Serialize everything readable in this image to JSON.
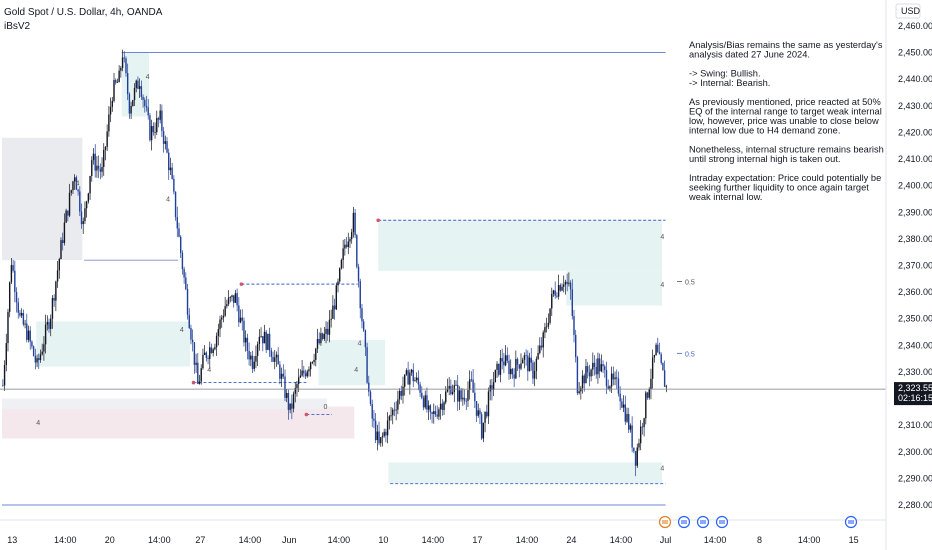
{
  "header": {
    "symbol_title": "Gold Spot / U.S. Dollar, 4h, OANDA",
    "indicator": "iBsV2"
  },
  "chart_data": {
    "type": "candlestick",
    "currency_label": "USD",
    "ylim": [
      2276,
      2465
    ],
    "y_ticks": [
      "2,460.000",
      "2,450.000",
      "2,440.000",
      "2,430.000",
      "2,420.000",
      "2,410.000",
      "2,400.000",
      "2,390.000",
      "2,380.000",
      "2,370.000",
      "2,360.000",
      "2,350.000",
      "2,340.000",
      "2,330.000",
      "2,320.000",
      "2,310.000",
      "2,300.000",
      "2,290.000",
      "2,280.000"
    ],
    "y_tick_values": [
      2460,
      2450,
      2440,
      2430,
      2420,
      2410,
      2400,
      2390,
      2380,
      2370,
      2360,
      2350,
      2340,
      2330,
      2320,
      2310,
      2300,
      2290,
      2280
    ],
    "x_ticks": [
      "13",
      "14:00",
      "20",
      "14:00",
      "27",
      "14:00",
      "Jun",
      "14:00",
      "10",
      "14:00",
      "17",
      "14:00",
      "24",
      "14:00",
      "Jul",
      "14:00",
      "8",
      "14:00",
      "15"
    ],
    "x_tick_bars": [
      6,
      37,
      63,
      92,
      116,
      145,
      168,
      197,
      223,
      252,
      278,
      307,
      333,
      362,
      388,
      417,
      443,
      472,
      498
    ],
    "bar_count": 390,
    "current_price_label": "2,323.555",
    "countdown_label": "02:16:15",
    "current_price": 2323.555,
    "price_path": [
      [
        0,
        2325
      ],
      [
        5,
        2372
      ],
      [
        10,
        2350
      ],
      [
        14,
        2345
      ],
      [
        20,
        2332
      ],
      [
        28,
        2352
      ],
      [
        36,
        2385
      ],
      [
        42,
        2405
      ],
      [
        47,
        2385
      ],
      [
        52,
        2410
      ],
      [
        58,
        2405
      ],
      [
        64,
        2435
      ],
      [
        68,
        2440
      ],
      [
        70,
        2450
      ],
      [
        74,
        2430
      ],
      [
        80,
        2440
      ],
      [
        86,
        2420
      ],
      [
        92,
        2425
      ],
      [
        98,
        2405
      ],
      [
        104,
        2375
      ],
      [
        110,
        2345
      ],
      [
        114,
        2325
      ],
      [
        118,
        2336
      ],
      [
        124,
        2342
      ],
      [
        130,
        2355
      ],
      [
        136,
        2358
      ],
      [
        142,
        2340
      ],
      [
        146,
        2334
      ],
      [
        150,
        2345
      ],
      [
        156,
        2340
      ],
      [
        162,
        2330
      ],
      [
        168,
        2315
      ],
      [
        172,
        2325
      ],
      [
        178,
        2332
      ],
      [
        184,
        2340
      ],
      [
        190,
        2345
      ],
      [
        196,
        2362
      ],
      [
        200,
        2378
      ],
      [
        205,
        2387
      ],
      [
        210,
        2350
      ],
      [
        215,
        2315
      ],
      [
        220,
        2302
      ],
      [
        226,
        2312
      ],
      [
        232,
        2322
      ],
      [
        238,
        2330
      ],
      [
        244,
        2324
      ],
      [
        250,
        2312
      ],
      [
        256,
        2318
      ],
      [
        262,
        2325
      ],
      [
        268,
        2320
      ],
      [
        274,
        2325
      ],
      [
        280,
        2308
      ],
      [
        286,
        2325
      ],
      [
        292,
        2335
      ],
      [
        298,
        2330
      ],
      [
        304,
        2336
      ],
      [
        310,
        2330
      ],
      [
        316,
        2342
      ],
      [
        322,
        2360
      ],
      [
        328,
        2365
      ],
      [
        332,
        2360
      ],
      [
        336,
        2325
      ],
      [
        342,
        2330
      ],
      [
        348,
        2333
      ],
      [
        354,
        2327
      ],
      [
        360,
        2324
      ],
      [
        366,
        2310
      ],
      [
        370,
        2298
      ],
      [
        374,
        2312
      ],
      [
        378,
        2326
      ],
      [
        382,
        2338
      ],
      [
        388,
        2324
      ]
    ],
    "h4_labels": [
      "4",
      "4",
      "4",
      "4",
      "4",
      "4",
      "4",
      "4",
      "4",
      "4",
      "4"
    ],
    "level_labels": [
      "0.5",
      "0.5"
    ],
    "choch_label": "0",
    "annotations": [
      "Analysis/Bias remains the same as yesterday's",
      "analysis dated 27 June 2024.",
      "",
      "-> Swing:  Bullish.",
      "-> Internal:  Bearish.",
      "",
      "As previously mentioned, price reacted at 50%",
      "EQ of the internal range to target weak internal",
      "low, however, price was unable to close below",
      "internal low due to H4 demand zone.",
      "",
      "Nonetheless, internal structure remains bearish",
      "until strong internal high is taken out.",
      "",
      "Intraday expectation: Price could potentially be",
      "seeking further liquidity to once again target",
      "weak internal low."
    ],
    "colors": {
      "up": "#131722",
      "down": "#1f3f9a",
      "demand_zone": "#e6f3f3",
      "supply_zone": "#e9ebef",
      "pink_zone": "#f4e8ec",
      "line_blue": "#3a5fcd",
      "price_line": "#787b86",
      "label_bg": "#131722"
    }
  }
}
